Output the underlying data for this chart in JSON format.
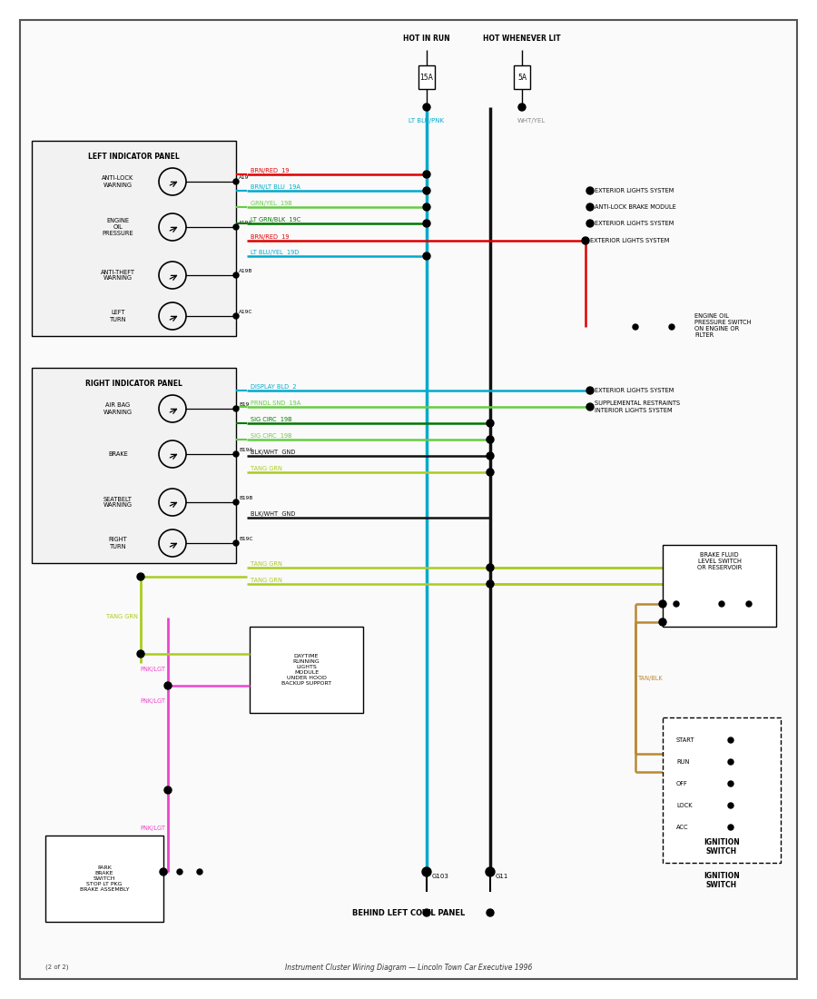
{
  "bg": "#ffffff",
  "panel1_title": "LEFT INDICATOR PANEL",
  "panel1_items": [
    "ANTI-LOCK\nWARNING",
    "ENGINE\nOIL\nPRESSURE",
    "ANTI-THEFT\nWARNING",
    "LEFT\nTURN"
  ],
  "panel1_pins": [
    "A19",
    "A19A",
    "A19B",
    "A19C"
  ],
  "panel2_title": "RIGHT INDICATOR PANEL",
  "panel2_items": [
    "AIR BAG\nWARNING",
    "BRAKE",
    "SEATBELT\nWARNING",
    "RIGHT\nTURN"
  ],
  "panel2_pins": [
    "B19",
    "B19A",
    "B19B",
    "B19C"
  ],
  "fuse_label_left": "HOT IN RUN",
  "fuse_label_right": "HOT WHENEVER LIT",
  "fuse_val_left": "15A",
  "fuse_val_right": "5A",
  "wire_red": "#dd0000",
  "wire_cyan": "#00aacc",
  "wire_ltblue": "#44aaff",
  "wire_dkgreen": "#007700",
  "wire_ltgreen": "#66cc44",
  "wire_yelgreen": "#aacc22",
  "wire_black": "#111111",
  "wire_pink": "#ee44cc",
  "wire_tan": "#bb8833",
  "wire_gray": "#888888",
  "conn_label1": "EXTERIOR LIGHTS SYSTEM",
  "conn_label2": "ANTI-LOCK BRAKE MODULE",
  "conn_label3": "EXTERIOR LIGHTS SYSTEM",
  "conn_label4": "EXTERIOR LIGHTS SYSTEM",
  "conn_label5": "EXTERIOR LIGHTS SYSTEM",
  "conn_label6": "SUPPLEMENTAL RESTRAINTS\nINTERIOR LIGHTS SYSTEM",
  "oil_label": "ENGINE OIL\nPRESSURE SWITCH\nON ENGINE OR\nFILTER",
  "brake_fluid_label": "BRAKE FLUID\nLEVEL SWITCH\nOR RESERVOIR",
  "drl_label": "DAYTIME\nRUNNING\nLIGHTS\nMODULE\nUNDER HOOD\nBACKUP SUPPORT",
  "cowl_label": "BEHIND LEFT COWL PANEL",
  "ign_label": "IGNITION\nSWITCH",
  "ign_items": [
    "START",
    "RUN",
    "OFF",
    "LOCK",
    "ACC"
  ],
  "park_label": "PARK\nBRAKE\nSWITCH\nSTOP LT PKG\nBRAKE ASSEMBLY",
  "g11": "G11",
  "g103": "G103",
  "wire_lbl1": "BRN/RED  19",
  "wire_lbl2": "BRN/LT BLU  19A",
  "wire_lbl3": "GRN/YEL  19B",
  "wire_lbl4": "LT GRN/BLK  19C",
  "wire_lbl5": "BRN/RED  19",
  "wire_lbl6": "BRN/RED  19",
  "wire_lbl7": "LT BLU/YEL  19D",
  "wire_lbl8": "DISPLAY BLD  2",
  "wire_lbl9": "PRNDL SND  19A",
  "wire_lbl10": "SIG CIRC  19B",
  "wire_lbl11": "SIG CIRC  19B",
  "wire_lbl12": "BLK/WHT  GND",
  "wire_lbl13": "TANG GRN",
  "wire_lbl14": "TANG GRN",
  "wire_lbl15": "TANG GRN",
  "wire_lbl16": "TANG GRN",
  "wire_lbl17": "TAN/BLK",
  "wire_lbl18": "PNK/LGT",
  "wire_lbl19": "PNK/LGT",
  "wire_lbl20": "PNK/LGT",
  "ltblupnk": "LT BLU/PNK",
  "whtyel": "WHT/YEL"
}
